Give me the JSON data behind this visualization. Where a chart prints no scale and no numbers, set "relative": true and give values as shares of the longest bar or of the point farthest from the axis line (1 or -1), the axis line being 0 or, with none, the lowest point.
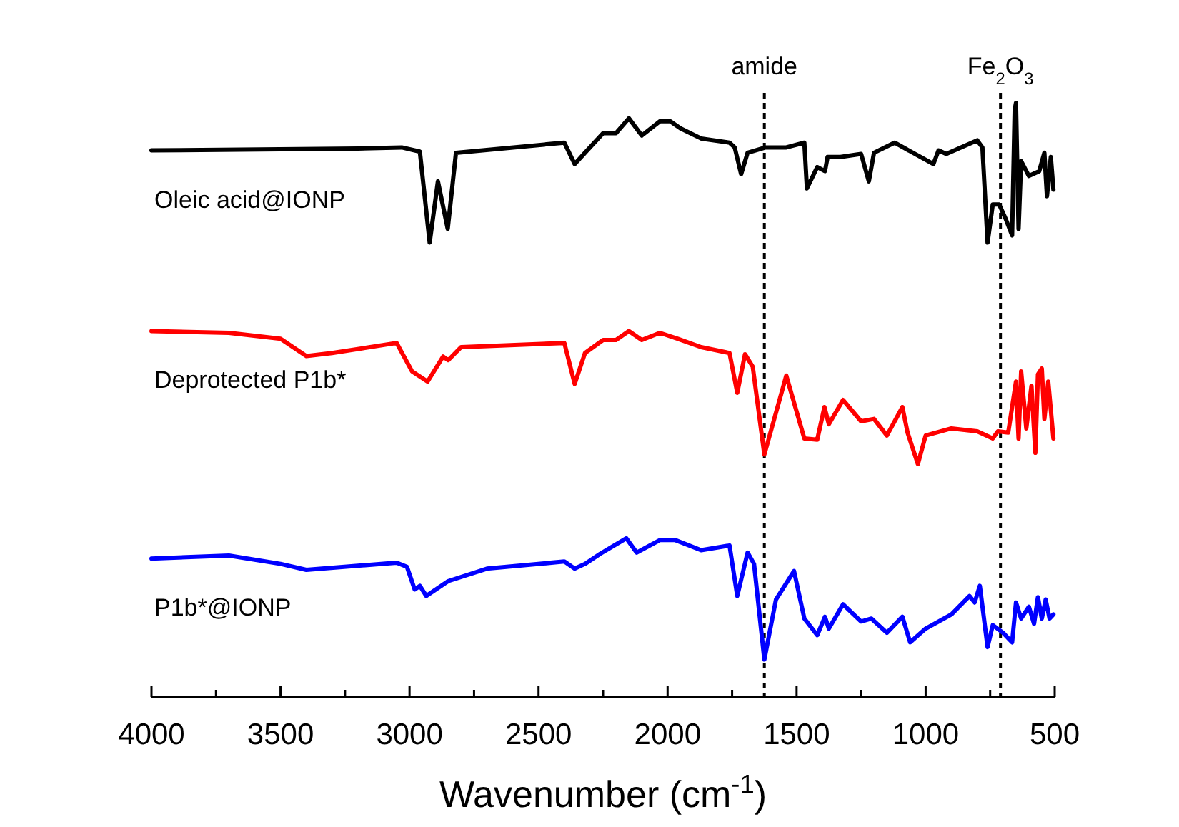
{
  "chart_data": {
    "type": "line",
    "xlabel": "Wavenumber (cm$^{-1}$)",
    "relative": true,
    "xlim": [
      4000,
      500
    ],
    "xticks": [
      4000,
      {
        "value": 3750,
        "label": null
      },
      3500,
      {
        "value": 3250,
        "label": null
      },
      3000,
      {
        "value": 2750,
        "label": null
      },
      2500,
      {
        "value": 2250,
        "label": null
      },
      2000,
      {
        "value": 1750,
        "label": null
      },
      1500,
      {
        "value": 1250,
        "label": null
      },
      1000,
      {
        "value": 750,
        "label": null
      },
      500
    ],
    "legend": false,
    "grid": false,
    "marker": "none",
    "line_style": "solid",
    "ref_lines": [
      {
        "axis": "x",
        "value": 1625,
        "label": "amide",
        "line_style": "dashed",
        "color": "#000000"
      },
      {
        "axis": "x",
        "value": 710,
        "label": "Fe$_{2}$O$_{3}$",
        "line_style": "dashed",
        "color": "#000000"
      }
    ],
    "series": [
      {
        "name": "Oleic acid@IONP",
        "color": "#000000",
        "x": [
          4000,
          3200,
          3030,
          2960,
          2922,
          2890,
          2852,
          2820,
          2400,
          2360,
          2320,
          2250,
          2200,
          2150,
          2100,
          2030,
          1990,
          1950,
          1870,
          1760,
          1740,
          1715,
          1690,
          1620,
          1540,
          1470,
          1460,
          1420,
          1390,
          1380,
          1330,
          1250,
          1220,
          1200,
          1120,
          970,
          950,
          920,
          800,
          780,
          760,
          740,
          715,
          690,
          665,
          655,
          650,
          640,
          630,
          600,
          560,
          540,
          530,
          515,
          505
        ],
        "values": [
          0.92,
          0.923,
          0.925,
          0.918,
          0.765,
          0.868,
          0.788,
          0.916,
          0.933,
          0.897,
          0.916,
          0.949,
          0.949,
          0.974,
          0.945,
          0.969,
          0.969,
          0.957,
          0.94,
          0.933,
          0.925,
          0.88,
          0.916,
          0.925,
          0.925,
          0.933,
          0.856,
          0.892,
          0.885,
          0.909,
          0.909,
          0.914,
          0.868,
          0.916,
          0.933,
          0.897,
          0.92,
          0.914,
          0.937,
          0.925,
          0.765,
          0.829,
          0.829,
          0.805,
          0.777,
          0.988,
          1.0,
          0.788,
          0.902,
          0.877,
          0.885,
          0.916,
          0.843,
          0.909,
          0.854
        ]
      },
      {
        "name": "Deprotected P1b*",
        "color": "#ff0000",
        "x": [
          4000,
          3700,
          3500,
          3400,
          3300,
          3050,
          2990,
          2930,
          2870,
          2850,
          2800,
          2400,
          2360,
          2320,
          2250,
          2200,
          2150,
          2100,
          2030,
          1960,
          1870,
          1760,
          1730,
          1700,
          1670,
          1625,
          1540,
          1470,
          1420,
          1392,
          1375,
          1320,
          1250,
          1200,
          1150,
          1090,
          1070,
          1030,
          1000,
          900,
          800,
          740,
          720,
          680,
          650,
          640,
          630,
          610,
          590,
          575,
          565,
          550,
          540,
          525,
          505
        ],
        "values": [
          0.616,
          0.613,
          0.603,
          0.574,
          0.579,
          0.596,
          0.548,
          0.531,
          0.573,
          0.567,
          0.589,
          0.596,
          0.527,
          0.579,
          0.601,
          0.601,
          0.616,
          0.601,
          0.613,
          0.603,
          0.589,
          0.579,
          0.512,
          0.577,
          0.556,
          0.408,
          0.541,
          0.435,
          0.433,
          0.488,
          0.459,
          0.5,
          0.464,
          0.468,
          0.44,
          0.488,
          0.445,
          0.392,
          0.44,
          0.452,
          0.447,
          0.435,
          0.447,
          0.445,
          0.531,
          0.435,
          0.548,
          0.452,
          0.524,
          0.411,
          0.543,
          0.553,
          0.468,
          0.531,
          0.435
        ]
      },
      {
        "name": "P1b*@IONP",
        "color": "#0000ff",
        "x": [
          4000,
          3700,
          3500,
          3400,
          3050,
          3010,
          2980,
          2960,
          2935,
          2850,
          2700,
          2400,
          2360,
          2320,
          2261,
          2160,
          2120,
          2030,
          1970,
          1870,
          1760,
          1730,
          1690,
          1665,
          1625,
          1580,
          1510,
          1470,
          1420,
          1390,
          1375,
          1320,
          1250,
          1210,
          1150,
          1090,
          1060,
          1000,
          900,
          830,
          810,
          790,
          760,
          740,
          700,
          665,
          650,
          630,
          600,
          580,
          565,
          550,
          535,
          520,
          505
        ],
        "values": [
          0.233,
          0.238,
          0.224,
          0.214,
          0.226,
          0.219,
          0.181,
          0.187,
          0.17,
          0.195,
          0.216,
          0.228,
          0.216,
          0.224,
          0.241,
          0.267,
          0.243,
          0.264,
          0.264,
          0.247,
          0.255,
          0.17,
          0.243,
          0.224,
          0.063,
          0.164,
          0.212,
          0.132,
          0.104,
          0.135,
          0.115,
          0.156,
          0.127,
          0.132,
          0.108,
          0.135,
          0.092,
          0.115,
          0.139,
          0.17,
          0.159,
          0.187,
          0.084,
          0.121,
          0.108,
          0.092,
          0.159,
          0.132,
          0.152,
          0.123,
          0.168,
          0.132,
          0.164,
          0.132,
          0.139
        ]
      }
    ]
  }
}
